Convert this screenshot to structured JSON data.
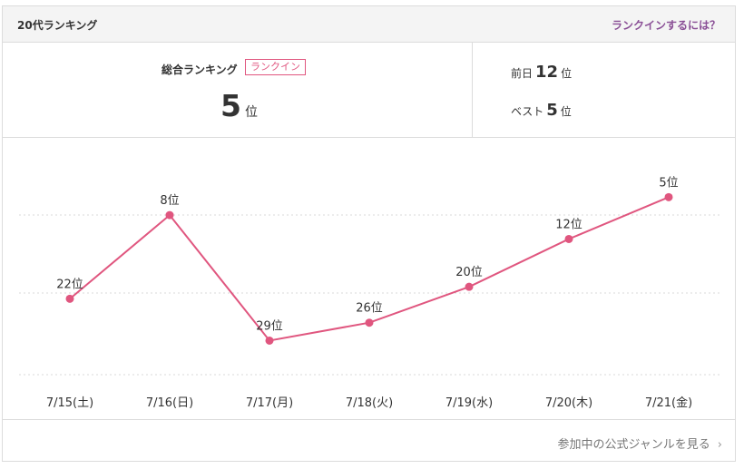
{
  "header": {
    "title": "20代ランキング",
    "help_link": "ランクインするには？"
  },
  "summary": {
    "total_label": "総合ランキング",
    "badge": "ランクイン",
    "rank": "5",
    "rank_unit": "位",
    "previous_label": "前日",
    "previous_value": "12",
    "previous_unit": "位",
    "best_label": "ベスト",
    "best_value": "5",
    "best_unit": "位"
  },
  "colors": {
    "line": "#e0567f",
    "accent": "#8a4f96",
    "grid": "#d8d8d8"
  },
  "chart_data": {
    "type": "line",
    "categories": [
      "7/15(土)",
      "7/16(日)",
      "7/17(月)",
      "7/18(火)",
      "7/19(水)",
      "7/20(木)",
      "7/21(金)"
    ],
    "values": [
      22,
      8,
      29,
      26,
      20,
      12,
      5
    ],
    "point_labels": [
      "22位",
      "8位",
      "29位",
      "26位",
      "20位",
      "12位",
      "5位"
    ],
    "y_inverted": true,
    "ylim": [
      1,
      35
    ],
    "grid": true
  },
  "footer": {
    "link": "参加中の公式ジャンルを見る",
    "chevron_icon": "chevron-right-icon"
  }
}
